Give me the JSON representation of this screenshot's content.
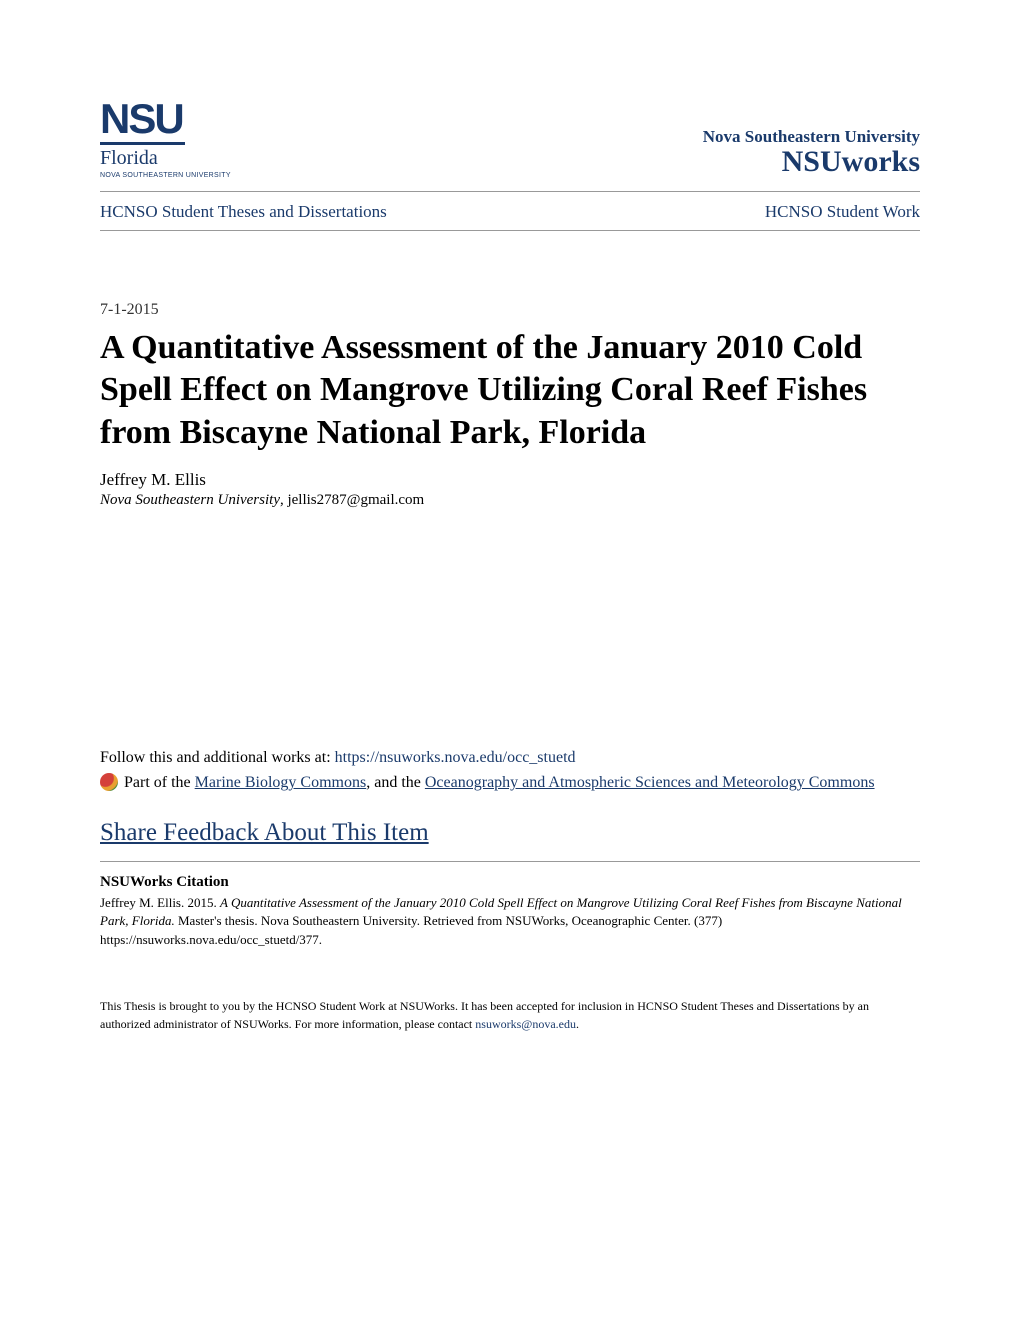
{
  "logo": {
    "nsu": "NSU",
    "florida": "Florida",
    "subtitle": "NOVA SOUTHEASTERN UNIVERSITY"
  },
  "header": {
    "university": "Nova Southeastern University",
    "repository": "NSUworks"
  },
  "nav": {
    "left": "HCNSO Student Theses and Dissertations",
    "right": "HCNSO Student Work"
  },
  "date": "7-1-2015",
  "title": "A Quantitative Assessment of the January 2010 Cold Spell Effect on Mangrove Utilizing Coral Reef Fishes from Biscayne National Park, Florida",
  "author": "Jeffrey M. Ellis",
  "affiliation": "Nova Southeastern University",
  "email": ", jellis2787@gmail.com",
  "follow": {
    "prefix": "Follow this and additional works at: ",
    "url": "https://nsuworks.nova.edu/occ_stuetd"
  },
  "commons": {
    "prefix": "Part of the ",
    "link1": "Marine Biology Commons",
    "middle": ", and the ",
    "link2": "Oceanography and Atmospheric Sciences and Meteorology Commons"
  },
  "feedback": "Share Feedback About This Item",
  "citation": {
    "header": "NSUWorks Citation",
    "author": "Jeffrey M. Ellis. 2015. ",
    "title_italic": "A Quantitative Assessment of the January 2010 Cold Spell Effect on Mangrove Utilizing Coral Reef Fishes from Biscayne National Park, Florida.",
    "rest": " Master's thesis. Nova Southeastern University. Retrieved from NSUWorks, Oceanographic Center. (377)",
    "url": "https://nsuworks.nova.edu/occ_stuetd/377."
  },
  "footer": {
    "text": "This Thesis is brought to you by the HCNSO Student Work at NSUWorks. It has been accepted for inclusion in HCNSO Student Theses and Dissertations by an authorized administrator of NSUWorks. For more information, please contact ",
    "email": "nsuworks@nova.edu",
    "period": "."
  }
}
